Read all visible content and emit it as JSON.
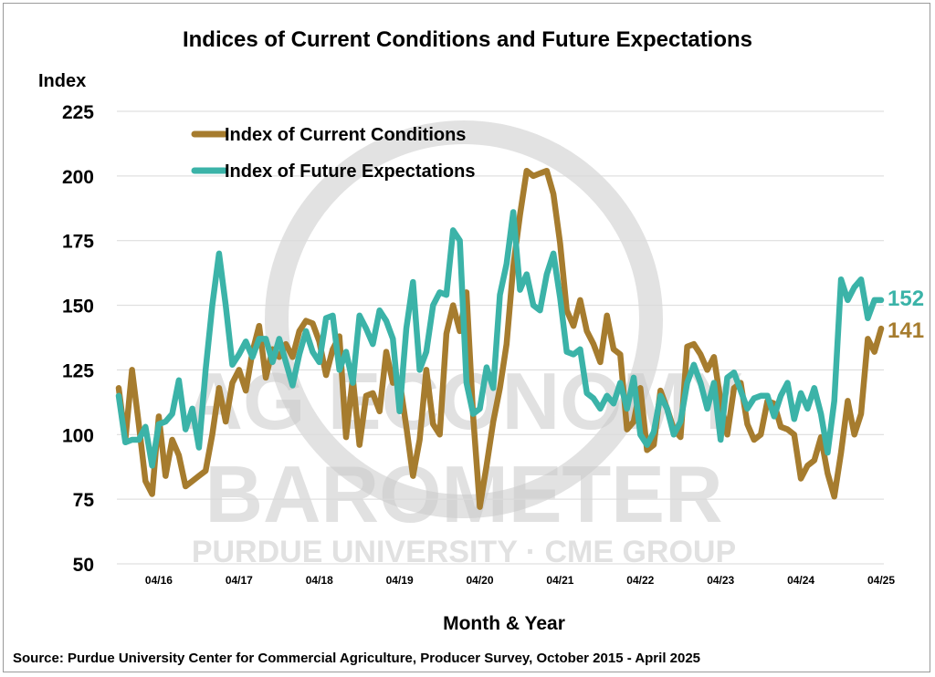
{
  "chart_data": {
    "type": "line",
    "title": "Indices of Current Conditions and Future Expectations",
    "ylabel": "Index",
    "xlabel": "Month & Year",
    "ylim": [
      50,
      225
    ],
    "yticks": [
      50,
      75,
      100,
      125,
      150,
      175,
      200,
      225
    ],
    "grid": true,
    "legend_position": "top-left",
    "x_tick_labels": [
      "04/16",
      "04/17",
      "04/18",
      "04/19",
      "04/20",
      "04/21",
      "04/22",
      "04/23",
      "04/24",
      "04/25"
    ],
    "x_tick_months": [
      6,
      18,
      30,
      42,
      54,
      66,
      78,
      90,
      102,
      114
    ],
    "x_range_months": [
      0,
      114
    ],
    "x_start": "October 2015",
    "series": [
      {
        "name": "Index of Current Conditions",
        "color": "#A67C2E",
        "end_label": "141",
        "points": [
          [
            0,
            118
          ],
          [
            1,
            98
          ],
          [
            2,
            125
          ],
          [
            3,
            104
          ],
          [
            4,
            82
          ],
          [
            5,
            77
          ],
          [
            6,
            107
          ],
          [
            7,
            84
          ],
          [
            8,
            98
          ],
          [
            9,
            92
          ],
          [
            10,
            80
          ],
          [
            11,
            82
          ],
          [
            12,
            84
          ],
          [
            13,
            86
          ],
          [
            14,
            100
          ],
          [
            15,
            118
          ],
          [
            16,
            105
          ],
          [
            17,
            120
          ],
          [
            18,
            125
          ],
          [
            19,
            117
          ],
          [
            20,
            132
          ],
          [
            21,
            142
          ],
          [
            22,
            122
          ],
          [
            23,
            133
          ],
          [
            24,
            130
          ],
          [
            25,
            135
          ],
          [
            26,
            130
          ],
          [
            27,
            140
          ],
          [
            28,
            144
          ],
          [
            29,
            143
          ],
          [
            30,
            136
          ],
          [
            31,
            123
          ],
          [
            32,
            133
          ],
          [
            33,
            138
          ],
          [
            34,
            99
          ],
          [
            35,
            122
          ],
          [
            36,
            96
          ],
          [
            37,
            115
          ],
          [
            38,
            116
          ],
          [
            39,
            109
          ],
          [
            40,
            132
          ],
          [
            41,
            120
          ],
          [
            42,
            121
          ],
          [
            43,
            103
          ],
          [
            44,
            84
          ],
          [
            45,
            98
          ],
          [
            46,
            125
          ],
          [
            47,
            104
          ],
          [
            48,
            100
          ],
          [
            49,
            139
          ],
          [
            50,
            150
          ],
          [
            51,
            140
          ],
          [
            52,
            155
          ],
          [
            53,
            107
          ],
          [
            54,
            72
          ],
          [
            55,
            88
          ],
          [
            56,
            105
          ],
          [
            57,
            118
          ],
          [
            58,
            135
          ],
          [
            59,
            165
          ],
          [
            60,
            185
          ],
          [
            61,
            202
          ],
          [
            62,
            200
          ],
          [
            63,
            201
          ],
          [
            64,
            202
          ],
          [
            65,
            193
          ],
          [
            66,
            174
          ],
          [
            67,
            148
          ],
          [
            68,
            142
          ],
          [
            69,
            152
          ],
          [
            70,
            140
          ],
          [
            71,
            135
          ],
          [
            72,
            128
          ],
          [
            73,
            146
          ],
          [
            74,
            133
          ],
          [
            75,
            131
          ],
          [
            76,
            102
          ],
          [
            77,
            105
          ],
          [
            78,
            118
          ],
          [
            79,
            94
          ],
          [
            80,
            96
          ],
          [
            81,
            117
          ],
          [
            82,
            110
          ],
          [
            83,
            102
          ],
          [
            84,
            99
          ],
          [
            85,
            134
          ],
          [
            86,
            135
          ],
          [
            87,
            131
          ],
          [
            88,
            125
          ],
          [
            89,
            130
          ],
          [
            90,
            113
          ],
          [
            91,
            100
          ],
          [
            92,
            118
          ],
          [
            93,
            120
          ],
          [
            94,
            104
          ],
          [
            95,
            98
          ],
          [
            96,
            100
          ],
          [
            97,
            113
          ],
          [
            98,
            112
          ],
          [
            99,
            103
          ],
          [
            100,
            102
          ],
          [
            101,
            100
          ],
          [
            102,
            83
          ],
          [
            103,
            88
          ],
          [
            104,
            90
          ],
          [
            105,
            99
          ],
          [
            106,
            85
          ],
          [
            107,
            76
          ],
          [
            108,
            93
          ],
          [
            109,
            113
          ],
          [
            110,
            100
          ],
          [
            111,
            108
          ],
          [
            112,
            137
          ],
          [
            113,
            132
          ],
          [
            114,
            141
          ]
        ]
      },
      {
        "name": "Index of Future Expectations",
        "color": "#3BB3A8",
        "end_label": "152",
        "points": [
          [
            0,
            115
          ],
          [
            1,
            97
          ],
          [
            2,
            98
          ],
          [
            3,
            98
          ],
          [
            4,
            103
          ],
          [
            5,
            88
          ],
          [
            6,
            104
          ],
          [
            7,
            105
          ],
          [
            8,
            108
          ],
          [
            9,
            121
          ],
          [
            10,
            102
          ],
          [
            11,
            110
          ],
          [
            12,
            95
          ],
          [
            13,
            125
          ],
          [
            14,
            150
          ],
          [
            15,
            170
          ],
          [
            16,
            150
          ],
          [
            17,
            127
          ],
          [
            18,
            131
          ],
          [
            19,
            136
          ],
          [
            20,
            130
          ],
          [
            21,
            137
          ],
          [
            22,
            137
          ],
          [
            23,
            128
          ],
          [
            24,
            137
          ],
          [
            25,
            128
          ],
          [
            26,
            119
          ],
          [
            27,
            131
          ],
          [
            28,
            140
          ],
          [
            29,
            132
          ],
          [
            30,
            128
          ],
          [
            31,
            145
          ],
          [
            32,
            146
          ],
          [
            33,
            125
          ],
          [
            34,
            132
          ],
          [
            35,
            120
          ],
          [
            36,
            146
          ],
          [
            37,
            141
          ],
          [
            38,
            135
          ],
          [
            39,
            148
          ],
          [
            40,
            144
          ],
          [
            41,
            137
          ],
          [
            42,
            109
          ],
          [
            43,
            141
          ],
          [
            44,
            159
          ],
          [
            45,
            125
          ],
          [
            46,
            132
          ],
          [
            47,
            150
          ],
          [
            48,
            155
          ],
          [
            49,
            154
          ],
          [
            50,
            179
          ],
          [
            51,
            175
          ],
          [
            52,
            120
          ],
          [
            53,
            108
          ],
          [
            54,
            110
          ],
          [
            55,
            126
          ],
          [
            56,
            118
          ],
          [
            57,
            154
          ],
          [
            58,
            166
          ],
          [
            59,
            186
          ],
          [
            60,
            156
          ],
          [
            61,
            162
          ],
          [
            62,
            150
          ],
          [
            63,
            148
          ],
          [
            64,
            162
          ],
          [
            65,
            170
          ],
          [
            66,
            153
          ],
          [
            67,
            132
          ],
          [
            68,
            131
          ],
          [
            69,
            133
          ],
          [
            70,
            116
          ],
          [
            71,
            114
          ],
          [
            72,
            110
          ],
          [
            73,
            115
          ],
          [
            74,
            112
          ],
          [
            75,
            120
          ],
          [
            76,
            110
          ],
          [
            77,
            122
          ],
          [
            78,
            100
          ],
          [
            79,
            96
          ],
          [
            80,
            101
          ],
          [
            81,
            115
          ],
          [
            82,
            110
          ],
          [
            83,
            100
          ],
          [
            84,
            105
          ],
          [
            85,
            120
          ],
          [
            86,
            127
          ],
          [
            87,
            120
          ],
          [
            88,
            110
          ],
          [
            89,
            120
          ],
          [
            90,
            98
          ],
          [
            91,
            122
          ],
          [
            92,
            124
          ],
          [
            93,
            117
          ],
          [
            94,
            110
          ],
          [
            95,
            114
          ],
          [
            96,
            115
          ],
          [
            97,
            115
          ],
          [
            98,
            107
          ],
          [
            99,
            115
          ],
          [
            100,
            120
          ],
          [
            101,
            106
          ],
          [
            102,
            116
          ],
          [
            103,
            110
          ],
          [
            104,
            118
          ],
          [
            105,
            108
          ],
          [
            106,
            93
          ],
          [
            107,
            113
          ],
          [
            108,
            160
          ],
          [
            109,
            152
          ],
          [
            110,
            157
          ],
          [
            111,
            160
          ],
          [
            112,
            145
          ],
          [
            113,
            152
          ],
          [
            114,
            152
          ]
        ]
      }
    ]
  },
  "source_text": "Source: Purdue University Center for Commercial Agriculture, Producer Survey, October 2015 - April 2025",
  "watermark": {
    "line1": "AG ECONOMY",
    "line2": "BAROMETER",
    "line3": "PURDUE UNIVERSITY  ·  CME GROUP"
  }
}
